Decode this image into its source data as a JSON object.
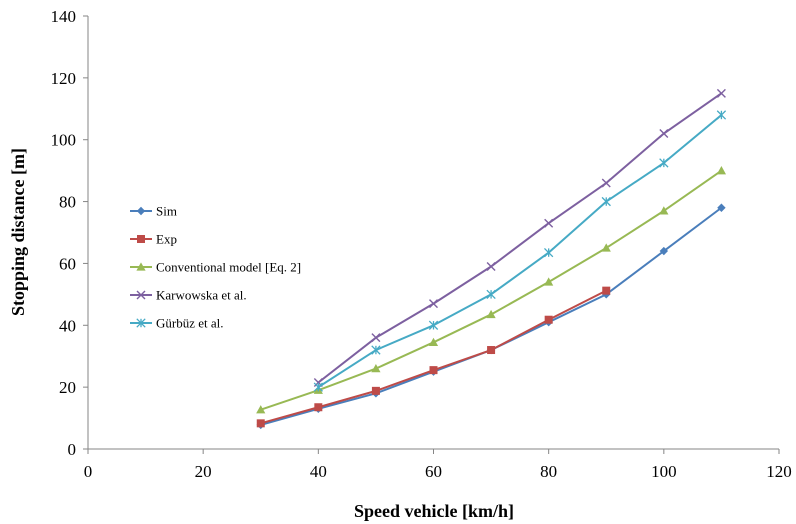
{
  "chart_data": {
    "type": "line",
    "title": "",
    "xlabel": "Speed vehicle [km/h]",
    "ylabel": "Stopping distance [m]",
    "xlim": [
      0,
      120
    ],
    "ylim": [
      0,
      140
    ],
    "xticks": [
      0,
      20,
      40,
      60,
      80,
      100,
      120
    ],
    "yticks": [
      0,
      20,
      40,
      60,
      80,
      100,
      120,
      140
    ],
    "grid": false,
    "legend_position": "left",
    "series": [
      {
        "name": "Sim",
        "color": "#4A7EBB",
        "marker": "diamond",
        "x": [
          30,
          40,
          50,
          60,
          70,
          80,
          90,
          100,
          110
        ],
        "y": [
          7.8,
          13,
          18,
          25,
          32,
          41,
          50,
          64,
          78
        ]
      },
      {
        "name": "Exp",
        "color": "#BE4B48",
        "marker": "square",
        "x": [
          30,
          40,
          50,
          60,
          70,
          80,
          90
        ],
        "y": [
          8.3,
          13.5,
          18.8,
          25.5,
          32,
          41.8,
          51.2
        ]
      },
      {
        "name": "Conventional model [Eq. 2]",
        "color": "#98B954",
        "marker": "triangle",
        "x": [
          30,
          40,
          50,
          60,
          70,
          80,
          90,
          100,
          110
        ],
        "y": [
          12.7,
          19,
          26,
          34.5,
          43.5,
          54,
          65,
          77,
          90
        ]
      },
      {
        "name": "Karwowska et al.",
        "color": "#7D60A0",
        "marker": "x",
        "x": [
          40,
          50,
          60,
          70,
          80,
          90,
          100,
          110
        ],
        "y": [
          21.5,
          36,
          47,
          59,
          73,
          86,
          102,
          115
        ]
      },
      {
        "name": "Gürbüz et al.",
        "color": "#46AAC5",
        "marker": "star",
        "x": [
          40,
          50,
          60,
          70,
          80,
          90,
          100,
          110
        ],
        "y": [
          20,
          32,
          40,
          50,
          63.5,
          80,
          92.5,
          108
        ]
      }
    ]
  }
}
